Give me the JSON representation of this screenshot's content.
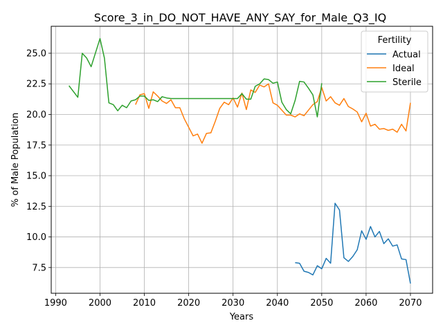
{
  "chart_data": {
    "type": "line",
    "title": "Score_3_in_DO_NOT_HAVE_ANY_SAY_for_Male_Q3_IQ",
    "xlabel": "Years",
    "ylabel": "% of Male Population",
    "xlim": [
      1989,
      2075
    ],
    "ylim": [
      5.4,
      27.2
    ],
    "x_ticks": [
      1990,
      2000,
      2010,
      2020,
      2030,
      2040,
      2050,
      2060,
      2070
    ],
    "y_ticks": [
      7.5,
      10.0,
      12.5,
      15.0,
      17.5,
      20.0,
      22.5,
      25.0
    ],
    "grid": true,
    "legend": {
      "title": "Fertility",
      "position": "top-right"
    },
    "series": [
      {
        "name": "Actual",
        "color": "#1f77b4",
        "x": [
          2044,
          2045,
          2046,
          2047,
          2048,
          2049,
          2050,
          2051,
          2052,
          2053,
          2054,
          2055,
          2056,
          2057,
          2058,
          2059,
          2060,
          2061,
          2062,
          2063,
          2064,
          2065,
          2066,
          2067,
          2068,
          2069,
          2070
        ],
        "y": [
          7.9,
          7.85,
          7.2,
          7.1,
          6.9,
          7.65,
          7.4,
          8.25,
          7.85,
          12.75,
          12.2,
          8.3,
          8.0,
          8.4,
          8.95,
          10.5,
          9.8,
          10.85,
          10.0,
          10.45,
          9.45,
          9.85,
          9.25,
          9.35,
          8.2,
          8.15,
          6.2
        ]
      },
      {
        "name": "Ideal",
        "color": "#ff7f0e",
        "x": [
          2008,
          2009,
          2010,
          2011,
          2012,
          2013,
          2014,
          2015,
          2016,
          2017,
          2018,
          2019,
          2020,
          2021,
          2022,
          2023,
          2024,
          2025,
          2026,
          2027,
          2028,
          2029,
          2030,
          2031,
          2032,
          2033,
          2034,
          2035,
          2036,
          2037,
          2038,
          2039,
          2040,
          2041,
          2042,
          2043,
          2044,
          2045,
          2046,
          2047,
          2048,
          2049,
          2050,
          2051,
          2052,
          2053,
          2054,
          2055,
          2056,
          2057,
          2058,
          2059,
          2060,
          2061,
          2062,
          2063,
          2064,
          2065,
          2066,
          2067,
          2068,
          2069,
          2070
        ],
        "y": [
          20.8,
          21.6,
          21.7,
          20.5,
          21.85,
          21.5,
          21.1,
          20.9,
          21.2,
          20.55,
          20.55,
          19.65,
          18.95,
          18.25,
          18.4,
          17.65,
          18.45,
          18.5,
          19.45,
          20.5,
          21.0,
          20.8,
          21.35,
          20.6,
          21.75,
          20.4,
          22.0,
          21.8,
          22.4,
          22.25,
          22.5,
          20.95,
          20.75,
          20.35,
          19.95,
          19.95,
          19.8,
          20.05,
          19.9,
          20.35,
          20.8,
          21.05,
          22.2,
          21.1,
          21.45,
          20.95,
          20.75,
          21.3,
          20.65,
          20.45,
          20.2,
          19.4,
          20.1,
          19.05,
          19.2,
          18.8,
          18.85,
          18.7,
          18.8,
          18.55,
          19.2,
          18.65,
          20.95
        ]
      },
      {
        "name": "Sterile",
        "color": "#2ca02c",
        "x": [
          1993,
          1995,
          1996,
          1997,
          1998,
          2000,
          2001,
          2002,
          2003,
          2004,
          2005,
          2006,
          2007,
          2008,
          2009,
          2010,
          2011,
          2012,
          2013,
          2014,
          2015,
          2016,
          2017,
          2018,
          2019,
          2020,
          2021,
          2022,
          2023,
          2024,
          2025,
          2026,
          2027,
          2028,
          2029,
          2030,
          2031,
          2032,
          2033,
          2034,
          2035,
          2036,
          2037,
          2038,
          2039,
          2040,
          2041,
          2042,
          2043,
          2044,
          2045,
          2046,
          2047,
          2048,
          2049,
          2050
        ],
        "y": [
          22.35,
          21.4,
          25.0,
          24.6,
          23.9,
          26.2,
          24.6,
          20.95,
          20.8,
          20.3,
          20.75,
          20.55,
          21.1,
          21.2,
          21.5,
          21.5,
          21.15,
          21.2,
          21.05,
          21.45,
          21.35,
          21.3,
          21.3,
          21.3,
          21.3,
          21.3,
          21.3,
          21.3,
          21.3,
          21.3,
          21.3,
          21.3,
          21.3,
          21.3,
          21.3,
          21.3,
          21.3,
          21.7,
          21.25,
          21.25,
          22.3,
          22.5,
          22.9,
          22.85,
          22.55,
          22.65,
          21.0,
          20.4,
          20.05,
          21.15,
          22.7,
          22.65,
          22.15,
          21.6,
          19.8,
          22.55
        ]
      }
    ]
  }
}
